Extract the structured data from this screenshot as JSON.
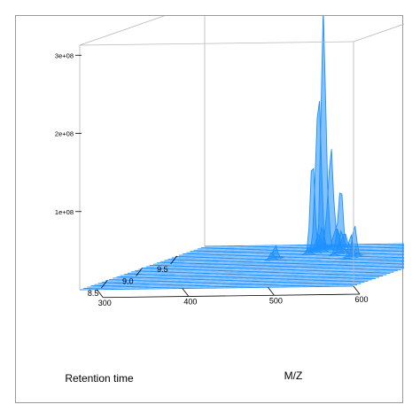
{
  "chart_data": {
    "type": "surface-3d",
    "zlabel": "",
    "xlabel": "M/Z",
    "ylabel": "Retention time",
    "x_ticks": [
      300,
      400,
      500,
      600
    ],
    "y_ticks": [
      8.5,
      9.0,
      9.5
    ],
    "z_ticks": [
      "1e+08",
      "2e+08",
      "3e+08"
    ],
    "xlim": [
      280,
      600
    ],
    "ylim": [
      8.1,
      9.9
    ],
    "zlim": [
      0,
      360000000
    ],
    "grid": false,
    "series_color": "#1e90ff",
    "peaks": [
      {
        "mz": 440,
        "rt": 9.62,
        "intensity": 340000000
      },
      {
        "mz": 436,
        "rt": 9.55,
        "intensity": 150000000
      },
      {
        "mz": 445,
        "rt": 9.68,
        "intensity": 130000000
      },
      {
        "mz": 452,
        "rt": 9.74,
        "intensity": 80000000
      },
      {
        "mz": 470,
        "rt": 9.5,
        "intensity": 45000000
      },
      {
        "mz": 498,
        "rt": 9.35,
        "intensity": 50000000
      },
      {
        "mz": 430,
        "rt": 9.72,
        "intensity": 35000000
      },
      {
        "mz": 410,
        "rt": 9.3,
        "intensity": 20000000
      }
    ]
  }
}
